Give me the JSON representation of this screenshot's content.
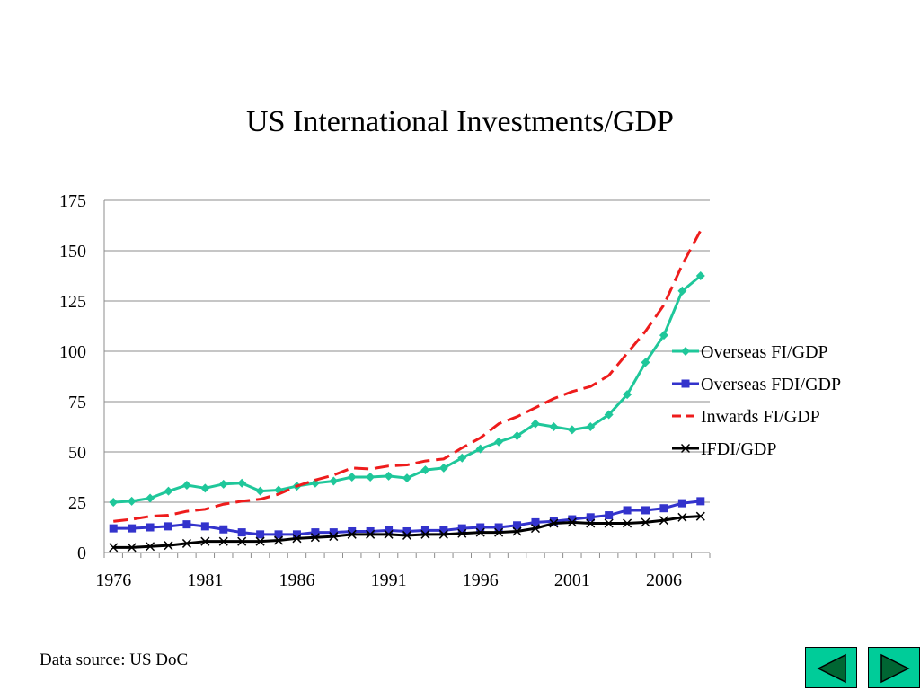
{
  "chart_data": {
    "type": "line",
    "title": "US International Investments/GDP",
    "xlabel": "",
    "ylabel": "",
    "xlim": [
      1976,
      2008
    ],
    "ylim": [
      0,
      175
    ],
    "y_ticks": [
      0,
      25,
      50,
      75,
      100,
      125,
      150,
      175
    ],
    "x_ticks": [
      1976,
      1981,
      1986,
      1991,
      1996,
      2001,
      2006
    ],
    "grid": "horizontal",
    "legend_position": "right",
    "x": [
      1976,
      1977,
      1978,
      1979,
      1980,
      1981,
      1982,
      1983,
      1984,
      1985,
      1986,
      1987,
      1988,
      1989,
      1990,
      1991,
      1992,
      1993,
      1994,
      1995,
      1996,
      1997,
      1998,
      1999,
      2000,
      2001,
      2002,
      2003,
      2004,
      2005,
      2006,
      2007,
      2008
    ],
    "series": [
      {
        "name": "Overseas FI/GDP",
        "color": "#1fc79a",
        "marker": "diamond",
        "dash": "solid",
        "values": [
          25,
          25.5,
          27,
          30.5,
          33.5,
          32,
          34,
          34.5,
          30.5,
          31,
          33,
          34.5,
          35.5,
          37.5,
          37.5,
          38,
          37,
          41,
          42,
          47,
          51.5,
          55,
          58,
          64,
          62.5,
          61,
          62.5,
          68.5,
          78.5,
          94.5,
          108,
          130,
          137.5
        ]
      },
      {
        "name": "Overseas FDI/GDP",
        "color": "#3333cc",
        "marker": "square",
        "dash": "solid",
        "values": [
          12,
          12,
          12.5,
          13,
          14,
          13,
          11.5,
          10,
          9,
          9,
          9,
          10,
          10,
          10.5,
          10.5,
          11,
          10.5,
          11,
          11,
          12,
          12.5,
          12.5,
          13.5,
          15,
          15.5,
          16.5,
          17.5,
          18.5,
          21,
          21,
          22,
          24.5,
          25.5
        ]
      },
      {
        "name": "Inwards FI/GDP",
        "color": "#ee1c1c",
        "marker": "none",
        "dash": "dashed",
        "values": [
          15.5,
          16.5,
          18,
          18.5,
          20.5,
          21.5,
          24,
          25.5,
          26.5,
          29,
          33,
          36,
          38.5,
          42,
          41.5,
          43,
          43.5,
          45.5,
          46.5,
          52,
          57,
          64,
          67.5,
          72,
          76.5,
          80,
          82.5,
          88,
          99,
          110,
          123,
          143,
          160
        ]
      },
      {
        "name": "IFDI/GDP",
        "color": "#000000",
        "marker": "x",
        "dash": "solid",
        "values": [
          2.5,
          2.5,
          3,
          3.5,
          4.5,
          5.5,
          5.5,
          5.5,
          5.5,
          6,
          7,
          7.5,
          8,
          9,
          9,
          9,
          8.5,
          9,
          9,
          9.5,
          10,
          10,
          10.5,
          12,
          14.5,
          15,
          14.5,
          14.5,
          14.5,
          15,
          16,
          17.5,
          18
        ]
      }
    ]
  },
  "footer": {
    "source_text": "Data source: US DoC"
  },
  "nav": {
    "button_color": "#00cc99",
    "prev_icon": "triangle-left-icon",
    "next_icon": "triangle-right-icon"
  }
}
